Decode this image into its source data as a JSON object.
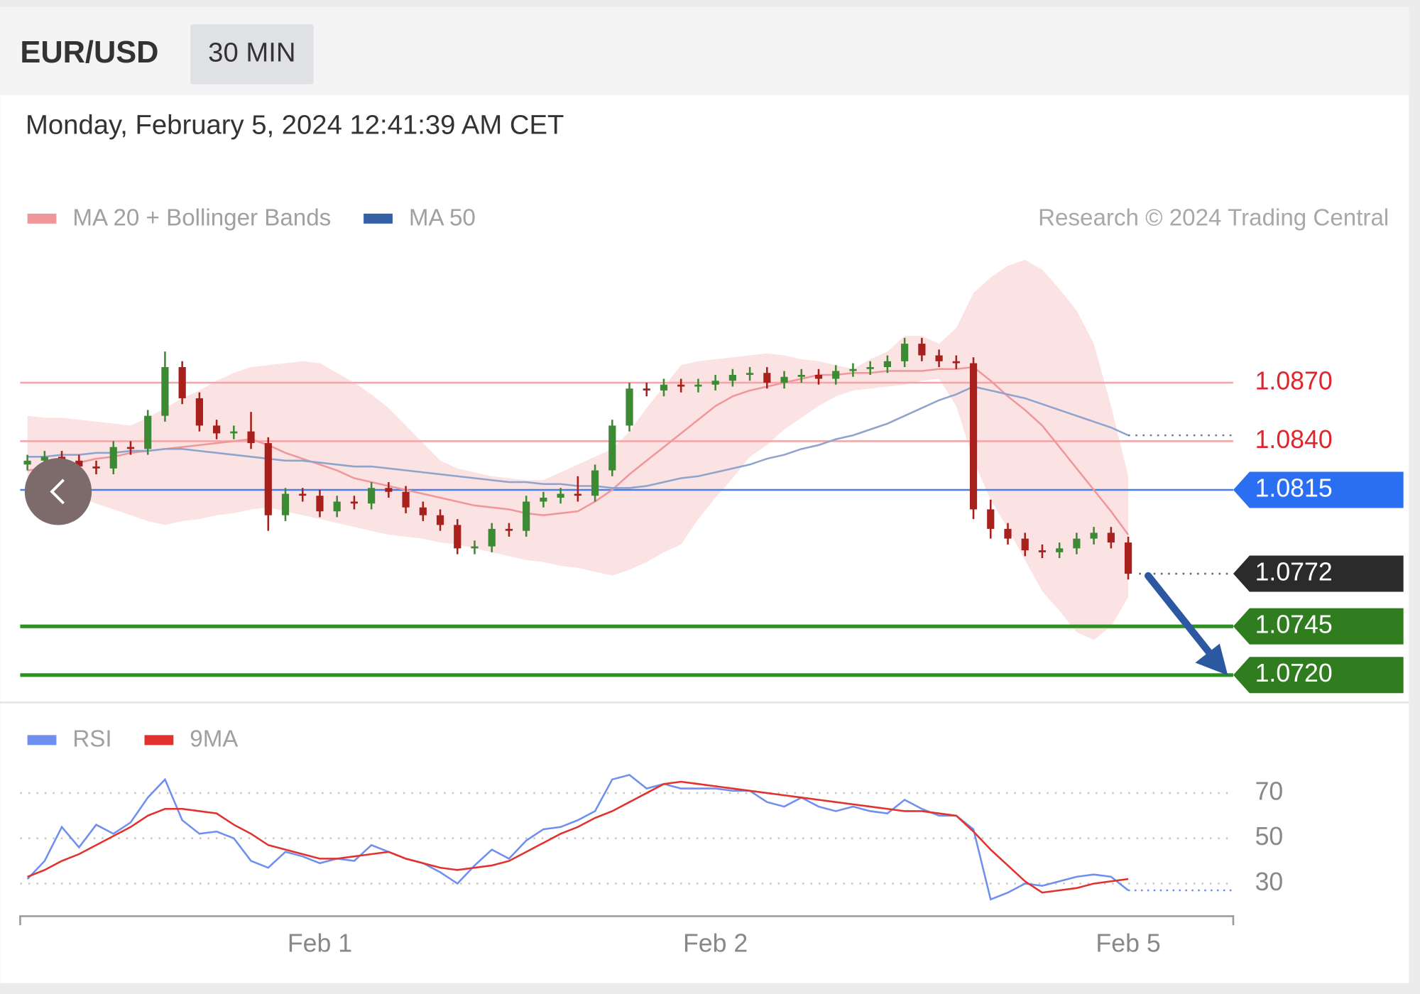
{
  "header": {
    "symbol": "EUR/USD",
    "interval": "30 MIN",
    "timestamp": "Monday, February 5, 2024 12:41:39 AM CET",
    "copyright": "Research © 2024 Trading Central"
  },
  "chart_data": [
    {
      "type": "candlestick",
      "ylim": [
        1.0705,
        1.094
      ],
      "up_color": "#3d8a35",
      "down_color": "#a8201c",
      "open": [
        1.0828,
        1.083,
        1.0832,
        1.083,
        1.0827,
        1.0826,
        1.0837,
        1.0836,
        1.0853,
        1.0878,
        1.0862,
        1.0848,
        1.0844,
        1.0845,
        1.0839,
        1.0802,
        1.0813,
        1.0812,
        1.0804,
        1.0809,
        1.0808,
        1.0816,
        1.0814,
        1.0806,
        1.0802,
        1.0797,
        1.0785,
        1.0786,
        1.0795,
        1.0794,
        1.0809,
        1.0811,
        1.0813,
        1.0812,
        1.0825,
        1.0848,
        1.0867,
        1.0866,
        1.0869,
        1.0868,
        1.0869,
        1.0871,
        1.0874,
        1.0875,
        1.087,
        1.0873,
        1.0874,
        1.0872,
        1.0876,
        1.0877,
        1.0878,
        1.0881,
        1.089,
        1.0884,
        1.0881,
        1.088,
        1.0805,
        1.0795,
        1.079,
        1.0784,
        1.0783,
        1.0785,
        1.079,
        1.0793,
        1.0788
      ],
      "high": [
        1.0833,
        1.0835,
        1.0835,
        1.0833,
        1.083,
        1.084,
        1.084,
        1.0856,
        1.0886,
        1.0881,
        1.0865,
        1.0851,
        1.0848,
        1.0855,
        1.0842,
        1.0816,
        1.0816,
        1.0815,
        1.0812,
        1.0812,
        1.0819,
        1.0819,
        1.0817,
        1.0809,
        1.0805,
        1.08,
        1.0789,
        1.0798,
        1.0798,
        1.0812,
        1.0814,
        1.0816,
        1.0822,
        1.0828,
        1.0851,
        1.087,
        1.087,
        1.0872,
        1.0872,
        1.0872,
        1.0874,
        1.0877,
        1.0878,
        1.0878,
        1.0876,
        1.0877,
        1.0877,
        1.0879,
        1.088,
        1.0881,
        1.0884,
        1.0893,
        1.0893,
        1.0887,
        1.0884,
        1.0883,
        1.081,
        1.0798,
        1.0793,
        1.0787,
        1.0788,
        1.0793,
        1.0796,
        1.0796,
        1.0791
      ],
      "low": [
        1.0825,
        1.0827,
        1.0827,
        1.0824,
        1.0823,
        1.0823,
        1.0833,
        1.0833,
        1.085,
        1.0859,
        1.0845,
        1.0841,
        1.0841,
        1.0836,
        1.0794,
        1.0799,
        1.0809,
        1.0801,
        1.0801,
        1.0805,
        1.0805,
        1.0811,
        1.0803,
        1.0799,
        1.0794,
        1.0782,
        1.0782,
        1.0783,
        1.0791,
        1.0791,
        1.0806,
        1.0808,
        1.0809,
        1.0809,
        1.0822,
        1.0845,
        1.0863,
        1.0863,
        1.0865,
        1.0865,
        1.0866,
        1.0868,
        1.0871,
        1.0867,
        1.0867,
        1.087,
        1.0869,
        1.0869,
        1.0873,
        1.0874,
        1.0875,
        1.0878,
        1.0881,
        1.0878,
        1.0877,
        1.08,
        1.079,
        1.0787,
        1.0781,
        1.078,
        1.078,
        1.0782,
        1.0787,
        1.0785,
        1.0769
      ],
      "close": [
        1.083,
        1.0832,
        1.083,
        1.0827,
        1.0826,
        1.0837,
        1.0836,
        1.0853,
        1.0878,
        1.0862,
        1.0848,
        1.0844,
        1.0845,
        1.0839,
        1.0802,
        1.0813,
        1.0812,
        1.0804,
        1.0809,
        1.0808,
        1.0816,
        1.0814,
        1.0806,
        1.0802,
        1.0797,
        1.0785,
        1.0786,
        1.0795,
        1.0794,
        1.0809,
        1.0811,
        1.0813,
        1.0812,
        1.0825,
        1.0848,
        1.0867,
        1.0866,
        1.0869,
        1.0868,
        1.0869,
        1.0871,
        1.0874,
        1.0875,
        1.087,
        1.0873,
        1.0874,
        1.0872,
        1.0876,
        1.0877,
        1.0878,
        1.0881,
        1.089,
        1.0884,
        1.0881,
        1.088,
        1.0805,
        1.0795,
        1.079,
        1.0784,
        1.0783,
        1.0785,
        1.079,
        1.0793,
        1.0788,
        1.0772
      ],
      "series": [
        {
          "name": "MA 20 + Bollinger Bands",
          "color": "#f0979a",
          "band_color": "#fbdede",
          "values": [
            1.0825,
            1.0826,
            1.0828,
            1.0829,
            1.0831,
            1.0832,
            1.0834,
            1.0835,
            1.0836,
            1.0837,
            1.0838,
            1.0839,
            1.084,
            1.0841,
            1.0838,
            1.0834,
            1.0831,
            1.0828,
            1.0825,
            1.0821,
            1.0819,
            1.0817,
            1.0815,
            1.0813,
            1.0811,
            1.0809,
            1.0807,
            1.0806,
            1.0805,
            1.0803,
            1.0802,
            1.0803,
            1.0804,
            1.0809,
            1.0815,
            1.0823,
            1.083,
            1.0837,
            1.0844,
            1.0851,
            1.0858,
            1.0863,
            1.0866,
            1.0868,
            1.087,
            1.0872,
            1.0874,
            1.0874,
            1.0875,
            1.0875,
            1.0876,
            1.0876,
            1.0876,
            1.0877,
            1.0877,
            1.0878,
            1.0871,
            1.0863,
            1.0856,
            1.0848,
            1.0837,
            1.0826,
            1.0815,
            1.0804,
            1.0792
          ],
          "upper": [
            1.0853,
            1.0852,
            1.0852,
            1.0851,
            1.085,
            1.0849,
            1.0848,
            1.0852,
            1.0857,
            1.0862,
            1.0866,
            1.0871,
            1.0875,
            1.0878,
            1.0879,
            1.088,
            1.0881,
            1.088,
            1.0875,
            1.087,
            1.0864,
            1.0857,
            1.0848,
            1.0839,
            1.083,
            1.0826,
            1.0824,
            1.0822,
            1.0821,
            1.082,
            1.082,
            1.0824,
            1.0828,
            1.0832,
            1.0836,
            1.0845,
            1.0857,
            1.0868,
            1.0879,
            1.0881,
            1.0882,
            1.0883,
            1.0884,
            1.0885,
            1.0884,
            1.0882,
            1.0881,
            1.0879,
            1.0877,
            1.0882,
            1.0886,
            1.0894,
            1.0894,
            1.089,
            1.0898,
            1.0916,
            1.0924,
            1.093,
            1.0933,
            1.0928,
            1.0918,
            1.0907,
            1.089,
            1.0858,
            1.0822
          ],
          "lower": [
            1.082,
            1.0817,
            1.0814,
            1.0811,
            1.0808,
            1.0805,
            1.0802,
            1.0799,
            1.0797,
            1.0799,
            1.08,
            1.0802,
            1.0803,
            1.0805,
            1.0806,
            1.0804,
            1.0802,
            1.08,
            1.0798,
            1.0796,
            1.0794,
            1.0792,
            1.0791,
            1.079,
            1.0788,
            1.0787,
            1.0785,
            1.0783,
            1.0781,
            1.0779,
            1.0778,
            1.0776,
            1.0775,
            1.0773,
            1.0771,
            1.0774,
            1.0778,
            1.0783,
            1.0787,
            1.08,
            1.0811,
            1.0821,
            1.0832,
            1.0838,
            1.0846,
            1.0852,
            1.0858,
            1.0863,
            1.0866,
            1.0867,
            1.0868,
            1.0869,
            1.0871,
            1.0872,
            1.0858,
            1.083,
            1.081,
            1.0795,
            1.0779,
            1.0763,
            1.0753,
            1.0742,
            1.0738,
            1.0745,
            1.076
          ]
        },
        {
          "name": "MA 50",
          "color": "#3560a8",
          "line_color": "#8ea4cf",
          "values": [
            1.0832,
            1.0832,
            1.0833,
            1.0833,
            1.0834,
            1.0834,
            1.0835,
            1.0835,
            1.0836,
            1.0836,
            1.0835,
            1.0834,
            1.0833,
            1.0832,
            1.0831,
            1.083,
            1.083,
            1.0829,
            1.0828,
            1.0827,
            1.0827,
            1.0826,
            1.0825,
            1.0824,
            1.0823,
            1.0822,
            1.0821,
            1.082,
            1.0819,
            1.0819,
            1.0818,
            1.0818,
            1.0817,
            1.0817,
            1.0816,
            1.0816,
            1.0817,
            1.0819,
            1.0821,
            1.0822,
            1.0824,
            1.0826,
            1.0828,
            1.0831,
            1.0833,
            1.0836,
            1.0838,
            1.0841,
            1.0843,
            1.0846,
            1.0849,
            1.0853,
            1.0857,
            1.0861,
            1.0864,
            1.0868,
            1.0866,
            1.0864,
            1.0862,
            1.0859,
            1.0856,
            1.0853,
            1.085,
            1.0847,
            1.0843
          ]
        }
      ],
      "levels": [
        {
          "value": 1.087,
          "label": "1.0870",
          "color": "#e0262c",
          "line_color": "#f5a3a6",
          "tag": false,
          "line": "solid"
        },
        {
          "value": 1.084,
          "label": "1.0840",
          "color": "#e0262c",
          "line_color": "#f5a3a6",
          "tag": false,
          "line": "solid"
        },
        {
          "value": 1.0815,
          "label": "1.0815",
          "color": "#2a6ff2",
          "line_color": "#4a7ee8",
          "tag": true,
          "line": "solid"
        },
        {
          "value": 1.0772,
          "label": "1.0772",
          "color": "#2b2b2b",
          "line_color": "#666666",
          "tag": true,
          "line": "dotted"
        },
        {
          "value": 1.0745,
          "label": "1.0745",
          "color": "#2f7d1f",
          "line_color": "#2f8f25",
          "tag": true,
          "line": "thick"
        },
        {
          "value": 1.072,
          "label": "1.0720",
          "color": "#2f7d1f",
          "line_color": "#2f8f25",
          "tag": true,
          "line": "thick"
        }
      ]
    },
    {
      "type": "line",
      "categories": [
        null,
        null,
        null,
        null,
        null,
        null,
        null,
        null,
        null,
        null,
        null,
        null,
        null,
        null,
        null,
        null,
        null,
        "Feb 1",
        null,
        null,
        null,
        null,
        null,
        null,
        null,
        null,
        null,
        null,
        null,
        null,
        null,
        null,
        null,
        null,
        null,
        null,
        null,
        null,
        null,
        null,
        "Feb 2",
        null,
        null,
        null,
        null,
        null,
        null,
        null,
        null,
        null,
        null,
        null,
        null,
        null,
        null,
        null,
        null,
        null,
        null,
        null,
        null,
        null,
        null,
        null,
        "Feb 5"
      ],
      "ylim": [
        18,
        82
      ],
      "yticks": [
        30,
        50,
        70
      ],
      "grid": true,
      "series": [
        {
          "name": "RSI",
          "color": "#6f8ff0",
          "values": [
            32,
            40,
            55,
            46,
            56,
            52,
            57,
            68,
            76,
            58,
            52,
            53,
            50,
            40,
            37,
            44,
            42,
            39,
            41,
            40,
            47,
            44,
            41,
            39,
            35,
            30,
            38,
            45,
            41,
            49,
            54,
            55,
            58,
            62,
            76,
            78,
            72,
            74,
            72,
            72,
            72,
            71,
            71,
            66,
            64,
            68,
            64,
            62,
            64,
            62,
            61,
            67,
            63,
            60,
            60,
            54,
            23,
            26,
            30,
            29,
            31,
            33,
            34,
            33,
            27
          ]
        },
        {
          "name": "9MA",
          "color": "#e2322d",
          "values": [
            33,
            36,
            40,
            43,
            47,
            51,
            55,
            60,
            63,
            63,
            62,
            61,
            56,
            52,
            47,
            45,
            43,
            41,
            41,
            42,
            43,
            44,
            41,
            39,
            37,
            36,
            37,
            38,
            40,
            44,
            48,
            52,
            55,
            59,
            62,
            66,
            70,
            74,
            75,
            74,
            73,
            72,
            71,
            70,
            69,
            68,
            67,
            66,
            65,
            64,
            63,
            62,
            62,
            61,
            60,
            53,
            45,
            38,
            31,
            26,
            27,
            28,
            30,
            31,
            32
          ]
        }
      ]
    }
  ]
}
